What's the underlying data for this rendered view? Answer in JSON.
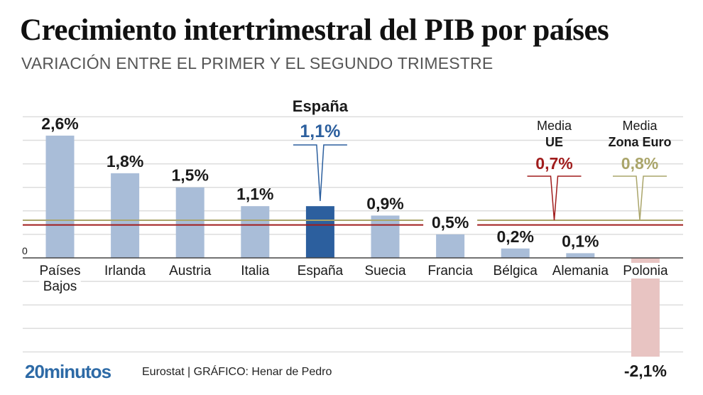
{
  "header": {
    "title": "Crecimiento intertrimestral del PIB por países",
    "subtitle": "VARIACIÓN ENTRE EL PRIMER Y EL SEGUNDO TRIMESTRE"
  },
  "footer": {
    "logo": "20minutos",
    "credit": "Eurostat  |  GRÁFICO: Henar de Pedro"
  },
  "colors": {
    "bar": "#a9bdd8",
    "highlight": "#2c5f9e",
    "negative": "#e8c4c2",
    "eu": "#a01c1c",
    "eurozone": "#aaa56a",
    "grid": "#dddddd",
    "axis": "#444444",
    "text": "#1a1a1a"
  },
  "chart_data": {
    "type": "bar",
    "title": "Crecimiento intertrimestral del PIB por países",
    "subtitle": "VARIACIÓN ENTRE EL PRIMER Y EL SEGUNDO TRIMESTRE",
    "categories": [
      "Países Bajos",
      "Irlanda",
      "Austria",
      "Italia",
      "España",
      "Suecia",
      "Francia",
      "Bélgica",
      "Alemania",
      "Polonia"
    ],
    "category_lines": [
      [
        "Países",
        "Bajos"
      ],
      [
        "Irlanda"
      ],
      [
        "Austria"
      ],
      [
        "Italia"
      ],
      [
        "España"
      ],
      [
        "Suecia"
      ],
      [
        "Francia"
      ],
      [
        "Bélgica"
      ],
      [
        "Alemania"
      ],
      [
        "Polonia"
      ]
    ],
    "values": [
      2.6,
      1.8,
      1.5,
      1.1,
      1.1,
      0.9,
      0.5,
      0.2,
      0.1,
      -2.1
    ],
    "value_labels": [
      "2,6%",
      "1,8%",
      "1,5%",
      "1,1%",
      "1,1%",
      "0,9%",
      "0,5%",
      "0,2%",
      "0,1%",
      "-2,1%"
    ],
    "highlight": "España",
    "highlight_callout": {
      "title": "España",
      "value_label": "1,1%"
    },
    "reference_lines": [
      {
        "name": "Media UE",
        "line1": "Media",
        "line2": "UE",
        "value": 0.7,
        "value_label": "0,7%"
      },
      {
        "name": "Media Zona Euro",
        "line1": "Media",
        "line2": "Zona Euro",
        "value": 0.8,
        "value_label": "0,8%"
      }
    ],
    "ylim": [
      -2.1,
      3.0
    ],
    "yticks": [
      -2.0,
      -1.5,
      -1.0,
      -0.5,
      0,
      0.5,
      1.0,
      1.5,
      2.0,
      2.5,
      3.0
    ],
    "ytick_labels_shown": [
      "0"
    ],
    "grid": true,
    "xlabel": "",
    "ylabel": "",
    "source": "Eurostat"
  }
}
